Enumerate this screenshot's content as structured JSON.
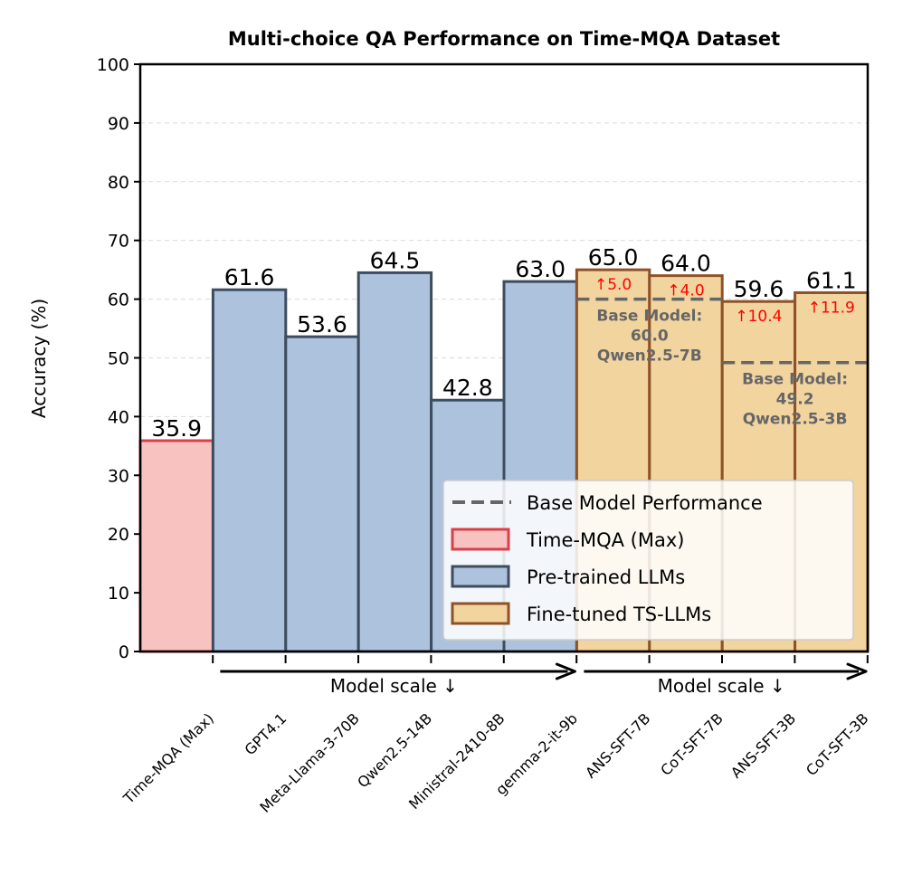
{
  "chart_data": {
    "type": "bar",
    "title": "Multi-choice QA Performance on Time-MQA Dataset",
    "xlabel": "",
    "ylabel": "Accuracy (%)",
    "ylim": [
      0,
      100
    ],
    "yticks": [
      0,
      10,
      20,
      30,
      40,
      50,
      60,
      70,
      80,
      90,
      100
    ],
    "grid": "y-dashed",
    "categories": [
      "Time-MQA (Max)",
      "GPT4.1",
      "Meta-Llama-3-70B",
      "Qwen2.5-14B",
      "Ministral-2410-8B",
      "gemma-2-it-9b",
      "ANS-SFT-7B",
      "CoT-SFT-7B",
      "ANS-SFT-3B",
      "CoT-SFT-3B"
    ],
    "values": [
      35.9,
      61.6,
      53.6,
      64.5,
      42.8,
      63.0,
      65.0,
      64.0,
      59.6,
      61.1
    ],
    "value_labels": [
      "35.9",
      "61.6",
      "53.6",
      "64.5",
      "42.8",
      "63.0",
      "65.0",
      "64.0",
      "59.6",
      "61.1"
    ],
    "groups": [
      "Time-MQA (Max)",
      "Pre-trained LLMs",
      "Pre-trained LLMs",
      "Pre-trained LLMs",
      "Pre-trained LLMs",
      "Pre-trained LLMs",
      "Fine-tuned TS-LLMs",
      "Fine-tuned TS-LLMs",
      "Fine-tuned TS-LLMs",
      "Fine-tuned TS-LLMs"
    ],
    "improvements": [
      {
        "bar_index": 6,
        "label": "↑5.0"
      },
      {
        "bar_index": 7,
        "label": "↑4.0"
      },
      {
        "bar_index": 8,
        "label": "↑10.4"
      },
      {
        "bar_index": 9,
        "label": "↑11.9"
      }
    ],
    "baselines": [
      {
        "value": 60.0,
        "from_index": 6,
        "to_index": 7,
        "label_lines": [
          "Base Model:",
          "60.0",
          "Qwen2.5-7B"
        ]
      },
      {
        "value": 49.2,
        "from_index": 8,
        "to_index": 9,
        "label_lines": [
          "Base Model:",
          "49.2",
          "Qwen2.5-3B"
        ]
      }
    ],
    "scale_arrows": [
      {
        "label": "Model scale  ↓",
        "from_index": 1,
        "to_index": 5
      },
      {
        "label": "Model scale  ↓",
        "from_index": 6,
        "to_index": 9
      }
    ],
    "legend": {
      "position": "lower-right",
      "entries": [
        {
          "label": "Base Model Performance",
          "kind": "dashed-line"
        },
        {
          "label": "Time-MQA (Max)",
          "kind": "patch"
        },
        {
          "label": "Pre-trained LLMs",
          "kind": "patch"
        },
        {
          "label": "Fine-tuned TS-LLMs",
          "kind": "patch"
        }
      ]
    },
    "colors": {
      "Time-MQA (Max)": {
        "fill": "#f7c2c0",
        "edge": "#d9404a"
      },
      "Pre-trained LLMs": {
        "fill": "#adc2dd",
        "edge": "#3d4d5f"
      },
      "Fine-tuned TS-LLMs": {
        "fill": "#f2d49f",
        "edge": "#8e5228"
      },
      "baseline": "#666666",
      "improvement": "#ff0000"
    }
  }
}
